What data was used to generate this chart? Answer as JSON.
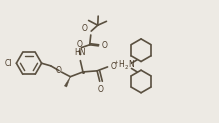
{
  "bg_color": "#edeae4",
  "line_color": "#5a5040",
  "line_width": 1.2,
  "text_color": "#4a3a28",
  "figsize": [
    2.19,
    1.23
  ],
  "dpi": 100,
  "xlim": [
    0,
    10
  ],
  "ylim": [
    0,
    5.6
  ]
}
